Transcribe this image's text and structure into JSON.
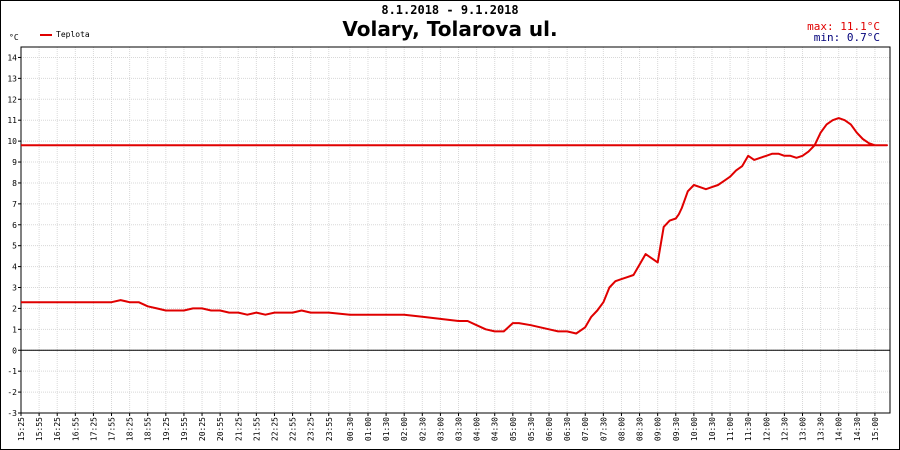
{
  "header": {
    "date_range": "8.1.2018 - 9.1.2018",
    "title": "Volary, Tolarova ul.",
    "max_label": "max:",
    "max_value": "11.1°C",
    "min_label": "min:",
    "min_value": "0.7°C"
  },
  "colors": {
    "series": "#e00000",
    "max_text": "#e00000",
    "min_text": "#00007a",
    "grid": "#d8d8d8"
  },
  "chart_data": {
    "type": "line",
    "unit": "°C",
    "ylim": [
      -3,
      14.5
    ],
    "yticks": [
      -3,
      -2,
      -1,
      0,
      1,
      2,
      3,
      4,
      5,
      6,
      7,
      8,
      9,
      10,
      11,
      12,
      13,
      14
    ],
    "xlim": [
      "8.1.2018 15:25",
      "9.1.2018 15:25"
    ],
    "xtick_labels": [
      "15:25",
      "15:55",
      "16:25",
      "16:55",
      "17:25",
      "17:55",
      "18:25",
      "18:55",
      "19:25",
      "19:55",
      "20:25",
      "20:55",
      "21:25",
      "21:55",
      "22:25",
      "22:55",
      "23:25",
      "23:55",
      "00:30",
      "01:00",
      "01:30",
      "02:00",
      "02:30",
      "03:00",
      "03:30",
      "04:00",
      "04:30",
      "05:00",
      "05:30",
      "06:00",
      "06:30",
      "07:00",
      "07:30",
      "08:00",
      "08:30",
      "09:00",
      "09:30",
      "10:00",
      "10:30",
      "11:00",
      "11:30",
      "12:00",
      "12:30",
      "13:00",
      "13:30",
      "14:00",
      "14:30",
      "15:00"
    ],
    "grid": true,
    "legend": "top-left",
    "series": [
      {
        "name": "Teplota",
        "color": "#e00000",
        "x": [
          "15:25",
          "15:55",
          "16:25",
          "16:55",
          "17:25",
          "17:55",
          "18:10",
          "18:25",
          "18:40",
          "18:55",
          "19:10",
          "19:25",
          "19:40",
          "19:55",
          "20:10",
          "20:25",
          "20:40",
          "20:55",
          "21:10",
          "21:25",
          "21:40",
          "21:55",
          "22:10",
          "22:25",
          "22:55",
          "23:10",
          "23:25",
          "23:55",
          "00:30",
          "00:50",
          "01:00",
          "01:30",
          "02:00",
          "02:30",
          "03:00",
          "03:30",
          "03:45",
          "04:00",
          "04:15",
          "04:30",
          "04:45",
          "05:00",
          "05:10",
          "05:30",
          "06:00",
          "06:15",
          "06:30",
          "06:45",
          "07:00",
          "07:10",
          "07:20",
          "07:30",
          "07:40",
          "07:50",
          "08:00",
          "08:10",
          "08:20",
          "08:30",
          "08:40",
          "09:00",
          "09:10",
          "09:20",
          "09:30",
          "09:35",
          "09:40",
          "09:45",
          "09:50",
          "10:00",
          "10:10",
          "10:20",
          "10:30",
          "10:40",
          "10:50",
          "11:00",
          "11:10",
          "11:20",
          "11:30",
          "11:40",
          "11:50",
          "12:00",
          "12:10",
          "12:20",
          "12:30",
          "12:40",
          "12:50",
          "13:00",
          "13:10",
          "13:20",
          "13:30",
          "13:40",
          "13:50",
          "14:00",
          "14:10",
          "14:20",
          "14:30",
          "14:40",
          "14:50",
          "15:00",
          "15:10",
          "15:20",
          "15:25"
        ],
        "values": [
          2.3,
          2.3,
          2.3,
          2.3,
          2.3,
          2.3,
          2.4,
          2.3,
          2.3,
          2.1,
          2.0,
          1.9,
          1.9,
          1.9,
          2.0,
          2.0,
          1.9,
          1.9,
          1.8,
          1.8,
          1.7,
          1.8,
          1.7,
          1.8,
          1.8,
          1.9,
          1.8,
          1.8,
          1.7,
          1.7,
          1.7,
          1.7,
          1.7,
          1.6,
          1.5,
          1.4,
          1.4,
          1.2,
          1.0,
          0.9,
          0.9,
          1.3,
          1.3,
          1.2,
          1.0,
          0.9,
          0.9,
          0.8,
          1.1,
          1.6,
          1.9,
          2.3,
          3.0,
          3.3,
          3.4,
          3.5,
          3.6,
          4.1,
          4.6,
          4.2,
          5.9,
          6.2,
          6.3,
          6.5,
          6.8,
          7.2,
          7.6,
          7.9,
          7.8,
          7.7,
          7.8,
          7.9,
          8.1,
          8.3,
          8.6,
          8.8,
          9.3,
          9.1,
          9.2,
          9.3,
          9.4,
          9.4,
          9.3,
          9.3,
          9.2,
          9.3,
          9.5,
          9.8,
          10.4,
          10.8,
          11.0,
          11.1,
          11.0,
          10.8,
          10.4,
          10.1,
          9.9,
          9.8,
          9.8,
          9.8,
          9.8
        ]
      }
    ]
  }
}
